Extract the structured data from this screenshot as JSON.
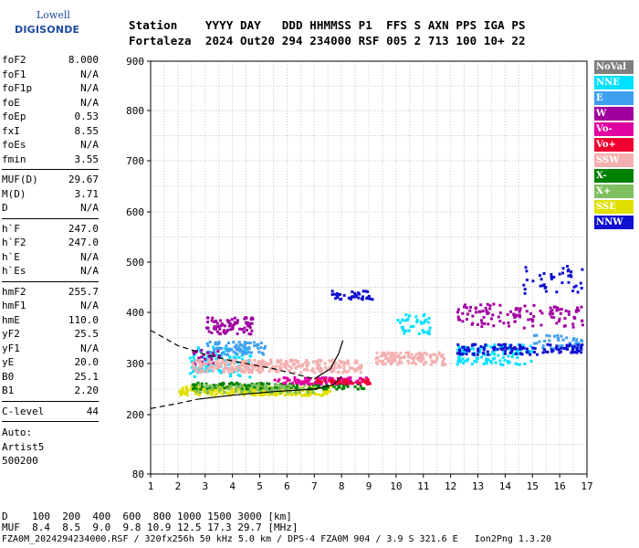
{
  "logo": {
    "top": "Lowell",
    "bottom": "DIGISONDE"
  },
  "header": {
    "line1": "Station    YYYY DAY   DDD HHMMSS P1  FFS S AXN PPS IGA PS",
    "line2": "Fortaleza  2024 Out20 294 234000 RSF 005 2 713 100 10+ 22"
  },
  "params": {
    "group1": [
      {
        "label": "foF2",
        "value": "8.000"
      },
      {
        "label": "foF1",
        "value": "N/A"
      },
      {
        "label": "foF1p",
        "value": "N/A"
      },
      {
        "label": "foE",
        "value": "N/A"
      },
      {
        "label": "foEp",
        "value": "0.53"
      },
      {
        "label": "fxI",
        "value": "8.55"
      },
      {
        "label": "foEs",
        "value": "N/A"
      },
      {
        "label": "fmin",
        "value": "3.55"
      }
    ],
    "group2": [
      {
        "label": "MUF(D)",
        "value": "29.67"
      },
      {
        "label": "M(D)",
        "value": "3.71"
      },
      {
        "label": "D",
        "value": "N/A"
      }
    ],
    "group3": [
      {
        "label": "h`F",
        "value": "247.0"
      },
      {
        "label": "h`F2",
        "value": "247.0"
      },
      {
        "label": "h`E",
        "value": "N/A"
      },
      {
        "label": "h`Es",
        "value": "N/A"
      }
    ],
    "group4": [
      {
        "label": "hmF2",
        "value": "255.7"
      },
      {
        "label": "hmF1",
        "value": "N/A"
      },
      {
        "label": "hmE",
        "value": "110.0"
      },
      {
        "label": "yF2",
        "value": "25.5"
      },
      {
        "label": "yF1",
        "value": "N/A"
      },
      {
        "label": "yE",
        "value": "20.0"
      },
      {
        "label": "B0",
        "value": "25.1"
      },
      {
        "label": "B1",
        "value": "2.20"
      }
    ],
    "clevel": {
      "label": "C-level",
      "value": "44"
    },
    "auto": [
      "Auto:",
      "Artist5",
      "500200"
    ]
  },
  "legend": [
    {
      "label": "NoVal",
      "color": "#808080"
    },
    {
      "label": "NNE",
      "color": "#00e0ff"
    },
    {
      "label": "E",
      "color": "#40a0f0"
    },
    {
      "label": "W",
      "color": "#a000a0"
    },
    {
      "label": "Vo-",
      "color": "#e000a0"
    },
    {
      "label": "Vo+",
      "color": "#f00030"
    },
    {
      "label": "SSW",
      "color": "#f4b0b0"
    },
    {
      "label": "X-",
      "color": "#008000"
    },
    {
      "label": "X+",
      "color": "#80c060"
    },
    {
      "label": "SSE",
      "color": "#e0e000"
    },
    {
      "label": "NNW",
      "color": "#1010d0"
    }
  ],
  "bottom": {
    "d_line": "D    100  200  400  600  800 1000 1500 3000 [km]",
    "muf_line": "MUF  8.4  8.5  9.0  9.8 10.9 12.5 17.3 29.7 [MHz]",
    "footer": "FZA0M_2024294234000.RSF / 320fx256h 50 kHz 5.0 km / DPS-4 FZA0M 904 / 3.9 S 321.6 E   Ion2Png 1.3.20"
  },
  "chart_data": {
    "type": "scatter",
    "xlim": [
      1,
      17
    ],
    "ylim": [
      80,
      900
    ],
    "xticks": [
      "1",
      "2",
      "3",
      "4",
      "5",
      "6",
      "7",
      "8",
      "9",
      "10",
      "11",
      "12",
      "13",
      "14",
      "15",
      "16",
      "17"
    ],
    "yticks": [
      "80",
      "200",
      "300",
      "400",
      "500",
      "600",
      "700",
      "800",
      "900"
    ],
    "grid": true,
    "clusters": [
      {
        "series": "NNE",
        "x": [
          2.4,
          4.7
        ],
        "y": [
          275,
          335
        ],
        "n": 120
      },
      {
        "series": "NNE",
        "x": [
          10.0,
          11.2
        ],
        "y": [
          360,
          400
        ],
        "n": 40
      },
      {
        "series": "NNE",
        "x": [
          12.2,
          15.0
        ],
        "y": [
          300,
          340
        ],
        "n": 120
      },
      {
        "series": "E",
        "x": [
          3.0,
          5.2
        ],
        "y": [
          320,
          345
        ],
        "n": 80
      },
      {
        "series": "E",
        "x": [
          15.0,
          16.8
        ],
        "y": [
          330,
          360
        ],
        "n": 40
      },
      {
        "series": "W",
        "x": [
          3.0,
          4.7
        ],
        "y": [
          360,
          395
        ],
        "n": 80
      },
      {
        "series": "W",
        "x": [
          2.5,
          3.5
        ],
        "y": [
          300,
          330
        ],
        "n": 30
      },
      {
        "series": "W",
        "x": [
          12.2,
          16.8
        ],
        "y": [
          370,
          420
        ],
        "n": 120
      },
      {
        "series": "SSW",
        "x": [
          2.5,
          8.7
        ],
        "y": [
          285,
          310
        ],
        "n": 320
      },
      {
        "series": "SSW",
        "x": [
          9.2,
          11.8
        ],
        "y": [
          300,
          325
        ],
        "n": 120
      },
      {
        "series": "SSE",
        "x": [
          2.0,
          7.6
        ],
        "y": [
          240,
          258
        ],
        "n": 260
      },
      {
        "series": "X-",
        "x": [
          2.5,
          8.8
        ],
        "y": [
          252,
          265
        ],
        "n": 150
      },
      {
        "series": "X+",
        "x": [
          2.5,
          7.0
        ],
        "y": [
          245,
          262
        ],
        "n": 90
      },
      {
        "series": "Vo-",
        "x": [
          5.5,
          9.0
        ],
        "y": [
          262,
          275
        ],
        "n": 100
      },
      {
        "series": "Vo+",
        "x": [
          7.0,
          9.0
        ],
        "y": [
          262,
          272
        ],
        "n": 40
      },
      {
        "series": "NNW",
        "x": [
          7.6,
          9.1
        ],
        "y": [
          428,
          445
        ],
        "n": 40
      },
      {
        "series": "NNW",
        "x": [
          12.2,
          16.8
        ],
        "y": [
          320,
          340
        ],
        "n": 120
      },
      {
        "series": "NNW",
        "x": [
          14.5,
          16.8
        ],
        "y": [
          440,
          495
        ],
        "n": 40
      }
    ],
    "trace_curves": [
      {
        "name": "lower",
        "style": "dashed",
        "x": [
          1,
          2.0,
          2.7
        ],
        "y": [
          212,
          222,
          230
        ]
      },
      {
        "name": "lower",
        "style": "solid",
        "x": [
          2.7,
          4,
          5.5,
          7,
          7.7,
          8.0
        ],
        "y": [
          230,
          238,
          245,
          250,
          258,
          275
        ]
      },
      {
        "name": "upper",
        "style": "dashed",
        "x": [
          1,
          2,
          3,
          4,
          5.5,
          7
        ],
        "y": [
          365,
          335,
          318,
          305,
          290,
          270
        ]
      },
      {
        "name": "upper",
        "style": "solid",
        "x": [
          7,
          7.6,
          7.9,
          8.05
        ],
        "y": [
          270,
          290,
          320,
          345
        ]
      }
    ]
  }
}
